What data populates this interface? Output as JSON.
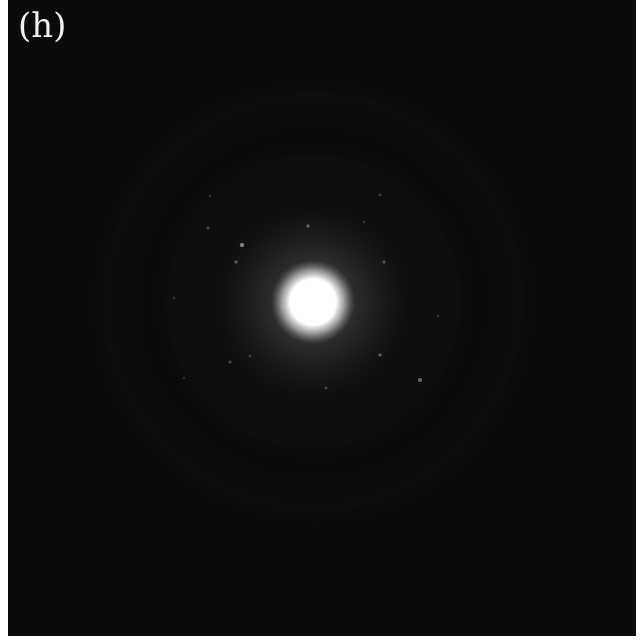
{
  "figure": {
    "panel_label": "(h)",
    "colors": {
      "background": "#0b0b0b",
      "central_spot": "#ffffff",
      "halo": "#8a8a8a",
      "label": "#f2f2f2"
    }
  }
}
